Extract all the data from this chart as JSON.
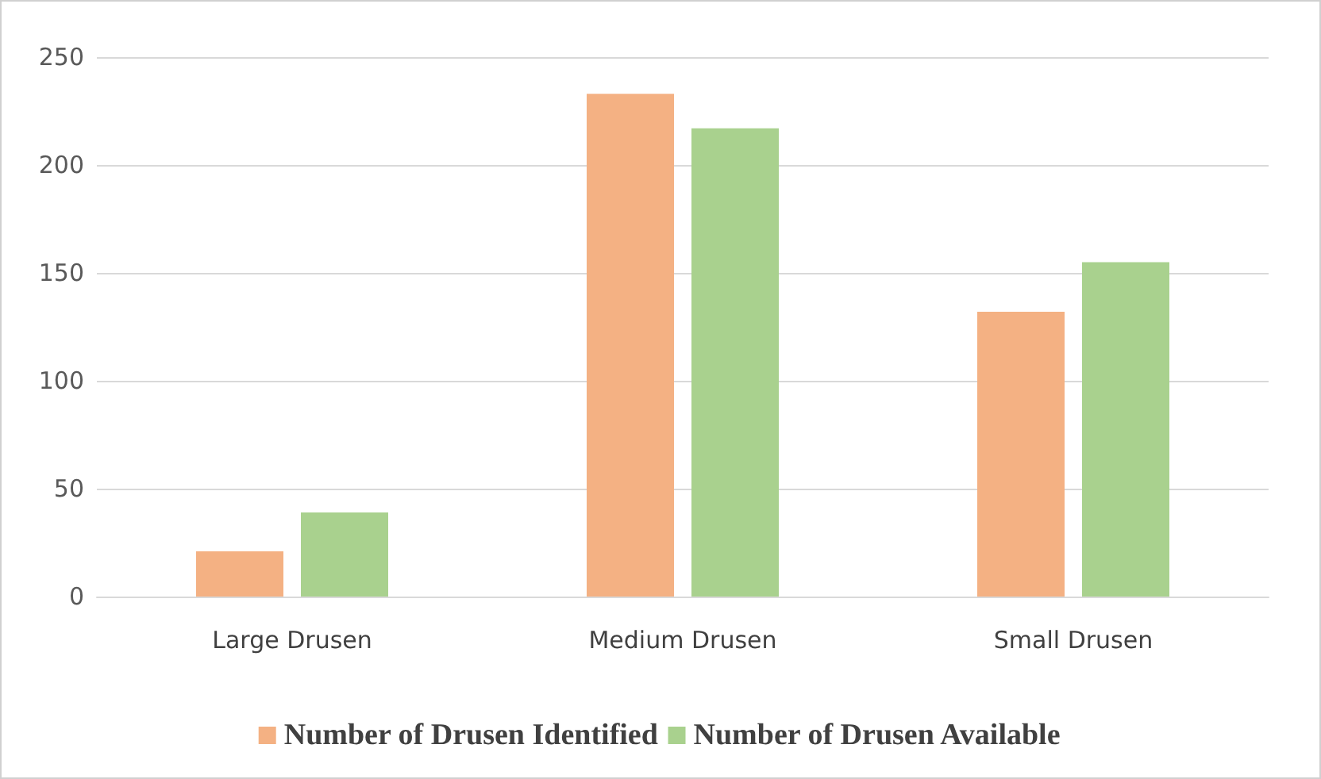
{
  "chart_data": {
    "type": "bar",
    "categories": [
      "Large Drusen",
      "Medium Drusen",
      "Small Drusen"
    ],
    "series": [
      {
        "name": "Number of Drusen Identified",
        "color": "#f4b183",
        "values": [
          21,
          233,
          132
        ]
      },
      {
        "name": "Number of Drusen Available",
        "color": "#a9d18e",
        "values": [
          39,
          217,
          155
        ]
      }
    ],
    "ylim": [
      0,
      250
    ],
    "yticks": [
      0,
      50,
      100,
      150,
      200,
      250
    ],
    "grid": "y",
    "legend": "bottom"
  }
}
